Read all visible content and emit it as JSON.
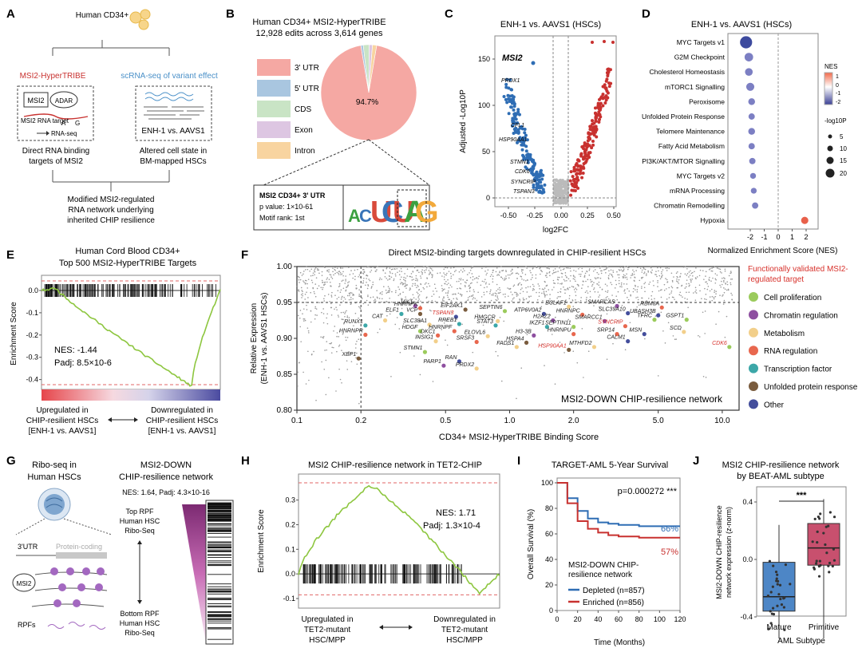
{
  "colors": {
    "utr3": "#F5A8A3",
    "utr5": "#A9C6E0",
    "cds": "#C9E4C5",
    "exon": "#DDC6E2",
    "intron": "#F8D4A0",
    "down_blue": "#2E6DB4",
    "up_red": "#C8312F",
    "green_line": "#8DC63F",
    "sig_dash": "#E06666",
    "cat_prolif": "#9BCB5C",
    "cat_chrom": "#8E4FA0",
    "cat_metab": "#F2CF8A",
    "cat_rna": "#E8674E",
    "cat_tf": "#3CA7A8",
    "cat_upr": "#7A5C3E",
    "cat_other": "#444E9C",
    "validated_red": "#D7312B",
    "j_mature": "#4D86C6",
    "j_primitive": "#C8506E"
  },
  "panelA": {
    "letter": "A",
    "cells_label": "Human CD34+",
    "left_title": "MSI2-HyperTRIBE",
    "right_title": "scRNA-seq of variant effect",
    "box_msi2": "MSI2",
    "box_adar": "ADAR",
    "rna_label": "MSI2 RNA target",
    "a_label": "A",
    "g_label": "G",
    "rnaseq_label": "RNA-seq",
    "enh_label": "ENH-1 vs. AAVS1",
    "left_caption": [
      "Direct RNA binding",
      "targets of MSI2"
    ],
    "right_caption": [
      "Altered cell state in",
      "BM-mapped HSCs"
    ],
    "bottom_caption": [
      "Modified MSI2-regulated",
      "RNA network underlying",
      "inherited CHIP resilience"
    ]
  },
  "panelB": {
    "letter": "B",
    "title": [
      "Human CD34+ MSI2-HyperTRIBE",
      "12,928 edits across 3,614 genes"
    ],
    "motif_box": [
      "MSI2 CD34+ 3' UTR",
      "p value: 1×10-61",
      "Motif rank: 1st"
    ],
    "motif_letters": [
      "A",
      "C",
      "U",
      "C",
      "U",
      "A",
      "G"
    ]
  },
  "panelC": {
    "letter": "C",
    "title": "ENH-1 vs. AAVS1 (HSCs)",
    "xlabel": "log2FC",
    "ylabel": "Adjusted -Log10P",
    "xticks": [
      "-0.50",
      "-0.25",
      "0.00",
      "0.25",
      "0.50"
    ],
    "yticks": [
      "0",
      "50",
      "100",
      "150"
    ],
    "labels": [
      "MSI2",
      "PRDX1",
      "CFL1",
      "HSP90AA1",
      "STMN1",
      "CDK6",
      "SYNCRIP",
      "TSPAN3"
    ]
  },
  "panelD": {
    "letter": "D",
    "title": "ENH-1 vs. AAVS1 (HSCs)",
    "xlabel": "Normalized Enrichment Score (NES)",
    "xticks": [
      "-2",
      "-1",
      "0",
      "1",
      "2"
    ],
    "nes_legend_title": "NES",
    "nes_ticks": [
      "1",
      "0",
      "-1",
      "-2"
    ],
    "size_legend_title": "-log10P",
    "size_ticks": [
      "5",
      "10",
      "15",
      "20"
    ]
  },
  "panelE": {
    "letter": "E",
    "title": [
      "Human Cord Blood CD34+",
      "Top 500 MSI2-HyperTRIBE Targets"
    ],
    "ylabel": "Enrichment Score",
    "yticks": [
      "0.0",
      "-0.1",
      "-0.2",
      "-0.3",
      "-0.4"
    ],
    "nes": "NES: -1.44",
    "padj": "Padj: 8.5×10-6",
    "left_caption": [
      "Upregulated in",
      "CHIP-resilient HSCs",
      "[ENH-1 vs. AAVS1]"
    ],
    "right_caption": [
      "Downregulated in",
      "CHIP-resilient HSCs",
      "[ENH-1 vs. AAVS1]"
    ]
  },
  "panelF": {
    "letter": "F",
    "title": "Direct MSI2-binding targets downregulated in CHIP-resilient HSCs",
    "xlabel": "CD34+ MSI2-HyperTRIBE Binding Score",
    "ylabel": [
      "Relative Expression",
      "(ENH-1 vs. AAVS1 HSCs)"
    ],
    "xticks": [
      "0.1",
      "0.2",
      "0.5",
      "1.0",
      "2.0",
      "5.0",
      "10.0"
    ],
    "yticks": [
      "0.80",
      "0.85",
      "0.90",
      "0.95",
      "1.00"
    ],
    "network_label": "MSI2-DOWN CHIP-resilience network",
    "legend_title": [
      "Functionally validated MSI2-",
      "regulated target"
    ],
    "legend": [
      "Cell proliferation",
      "Chromatin regulation",
      "Metabolism",
      "RNA regulation",
      "Transcription factor",
      "Unfolded protein response",
      "Other"
    ]
  },
  "panelG": {
    "letter": "G",
    "left_title": [
      "Ribo-seq in",
      "Human HSCs"
    ],
    "right_title": [
      "MSI2-DOWN",
      "CHIP-resilience network"
    ],
    "stats": "NES: 1.64, Padj: 4.3×10-16",
    "utr": "3'UTR",
    "coding": "Protein-coding",
    "msi2": "MSI2",
    "rpfs": "RPFs",
    "top": [
      "Top RPF",
      "Human HSC",
      "Ribo-Seq"
    ],
    "bottom": [
      "Bottom RPF",
      "Human HSC",
      "Ribo-Seq"
    ]
  },
  "panelH": {
    "letter": "H",
    "title": "MSI2 CHIP-resilience network in TET2-CHIP",
    "ylabel": "Enrichment Score",
    "yticks": [
      "0.3",
      "0.2",
      "0.1",
      "0.0",
      "-0.1"
    ],
    "nes": "NES: 1.71",
    "padj": "Padj: 1.3×10-4",
    "left_caption": [
      "Upregulated in",
      "TET2-mutant",
      "HSC/MPP"
    ],
    "right_caption": [
      "Downregulated in",
      "TET2-mutant",
      "HSC/MPP"
    ]
  },
  "panelI": {
    "letter": "I",
    "title": "TARGET-AML 5-Year Survival",
    "pvalue": "p=0.000272 ***",
    "xlabel": "Time (Months)",
    "ylabel": "Overall Survival (%)",
    "xticks": [
      "0",
      "20",
      "40",
      "60",
      "80",
      "100",
      "120"
    ],
    "yticks": [
      "100",
      "80",
      "60",
      "40",
      "20",
      "0"
    ],
    "pct_depleted": "66%",
    "pct_enriched": "57%",
    "legend_title": [
      "MSI2-DOWN CHIP-",
      "resilience network"
    ],
    "legend": [
      "Depleted (n=857)",
      "Enriched (n=856)"
    ]
  },
  "panelJ": {
    "letter": "J",
    "title": [
      "MSI2 CHIP-resilience network",
      "by BEAT-AML subtype"
    ],
    "ylabel": [
      "MSI2-DOWN CHIP-resilience",
      "network expression (z-norm)"
    ],
    "yticks": [
      "0.4",
      "0.0",
      "-0.4"
    ],
    "categories": [
      "Mature",
      "Primitive"
    ],
    "xlabel": "AML Subtype",
    "sig": "***"
  },
  "chart_data": [
    {
      "type": "pie",
      "title": "Human CD34+ MSI2-HyperTRIBE",
      "categories": [
        "3' UTR",
        "5' UTR",
        "CDS",
        "Exon",
        "Intron"
      ],
      "values": [
        94.7,
        0.8,
        2.0,
        1.1,
        1.4
      ],
      "center_label": "94.7%"
    },
    {
      "type": "scatter",
      "title": "Panel D ENH-1 vs. AAVS1 (HSCs)",
      "categories": [
        "MYC Targets v1",
        "G2M Checkpoint",
        "Cholesterol Homeostasis",
        "mTORC1 Signalling",
        "Peroxisome",
        "Unfolded Protein Response",
        "Telomere Maintenance",
        "Fatty Acid Metabolism",
        "PI3K/AKT/MTOR Signalling",
        "MYC Targets v2",
        "mRNA Processing",
        "Chromatin Remodelling",
        "Hypoxia"
      ],
      "nes": [
        -2.3,
        -2.1,
        -2.1,
        -2.0,
        -1.9,
        -1.9,
        -1.9,
        -1.9,
        -1.85,
        -1.8,
        -1.75,
        -1.65,
        1.9
      ],
      "neglog10p": [
        20,
        12,
        10,
        11,
        8,
        7,
        8,
        7,
        7,
        6,
        6,
        7,
        9
      ]
    },
    {
      "type": "scatter",
      "title": "Panel F Direct MSI2-binding targets",
      "xscale": "log",
      "xlim": [
        0.1,
        12
      ],
      "ylim": [
        0.8,
        1.0
      ],
      "points": [
        {
          "label": "JAK1",
          "x": 0.36,
          "y": 0.945,
          "cat": "cat_chrom",
          "v": false
        },
        {
          "label": "HNRNPK",
          "x": 0.38,
          "y": 0.942,
          "cat": "cat_rna",
          "v": false
        },
        {
          "label": "EIF2AK1",
          "x": 0.62,
          "y": 0.94,
          "cat": "cat_upr",
          "v": false
        },
        {
          "label": "SEPTIN6",
          "x": 0.95,
          "y": 0.938,
          "cat": "cat_prolif",
          "v": false
        },
        {
          "label": "BCLAF1",
          "x": 1.9,
          "y": 0.944,
          "cat": "cat_metab",
          "v": false
        },
        {
          "label": "SMARCA5",
          "x": 3.2,
          "y": 0.945,
          "cat": "cat_chrom",
          "v": false
        },
        {
          "label": "RBM8A",
          "x": 5.2,
          "y": 0.943,
          "cat": "cat_rna",
          "v": false
        },
        {
          "label": "ELF1",
          "x": 0.31,
          "y": 0.934,
          "cat": "cat_tf",
          "v": false
        },
        {
          "label": "VCP",
          "x": 0.38,
          "y": 0.934,
          "cat": "cat_upr",
          "v": false
        },
        {
          "label": "TSPAN3",
          "x": 0.56,
          "y": 0.93,
          "cat": "cat_other",
          "v": true
        },
        {
          "label": "ATP6V0A2",
          "x": 1.45,
          "y": 0.934,
          "cat": "cat_other",
          "v": false
        },
        {
          "label": "HNRNPC",
          "x": 2.2,
          "y": 0.933,
          "cat": "cat_rna",
          "v": false
        },
        {
          "label": "SLC39A10",
          "x": 3.6,
          "y": 0.935,
          "cat": "cat_other",
          "v": false
        },
        {
          "label": "UBASH3B",
          "x": 5.0,
          "y": 0.932,
          "cat": "cat_other",
          "v": false
        },
        {
          "label": "CAT",
          "x": 0.26,
          "y": 0.925,
          "cat": "cat_metab",
          "v": false
        },
        {
          "label": "HMGCR",
          "x": 0.88,
          "y": 0.924,
          "cat": "cat_metab",
          "v": false
        },
        {
          "label": "H2AZ2",
          "x": 1.6,
          "y": 0.925,
          "cat": "cat_chrom",
          "v": false
        },
        {
          "label": "SMARCC1",
          "x": 2.8,
          "y": 0.924,
          "cat": "cat_chrom",
          "v": false
        },
        {
          "label": "TFRC",
          "x": 4.8,
          "y": 0.926,
          "cat": "cat_prolif",
          "v": false
        },
        {
          "label": "GSPT1",
          "x": 6.8,
          "y": 0.926,
          "cat": "cat_prolif",
          "v": false
        },
        {
          "label": "RUNX1",
          "x": 0.21,
          "y": 0.918,
          "cat": "cat_tf",
          "v": false
        },
        {
          "label": "SLC38A1",
          "x": 0.42,
          "y": 0.919,
          "cat": "cat_metab",
          "v": false
        },
        {
          "label": "RREB1",
          "x": 0.58,
          "y": 0.92,
          "cat": "cat_tf",
          "v": false
        },
        {
          "label": "STAT3",
          "x": 0.86,
          "y": 0.918,
          "cat": "cat_tf",
          "v": false
        },
        {
          "label": "IKZF1",
          "x": 1.5,
          "y": 0.916,
          "cat": "cat_tf",
          "v": false
        },
        {
          "label": "SEPTIN11",
          "x": 2.0,
          "y": 0.916,
          "cat": "cat_prolif",
          "v": false
        },
        {
          "label": "SYNCRIP",
          "x": 3.5,
          "y": 0.917,
          "cat": "cat_rna",
          "v": true
        },
        {
          "label": "HDGF",
          "x": 0.38,
          "y": 0.91,
          "cat": "cat_prolif",
          "v": false
        },
        {
          "label": "HNRNPF",
          "x": 0.55,
          "y": 0.91,
          "cat": "cat_rna",
          "v": false
        },
        {
          "label": "SCD",
          "x": 6.6,
          "y": 0.909,
          "cat": "cat_metab",
          "v": false
        },
        {
          "label": "CDK6",
          "x": 10.8,
          "y": 0.888,
          "cat": "cat_prolif",
          "v": true
        },
        {
          "label": "HNRNPR",
          "x": 0.21,
          "y": 0.905,
          "cat": "cat_rna",
          "v": false
        },
        {
          "label": "DKC1",
          "x": 0.46,
          "y": 0.904,
          "cat": "cat_rna",
          "v": false
        },
        {
          "label": "ELOVL6",
          "x": 0.79,
          "y": 0.903,
          "cat": "cat_metab",
          "v": false
        },
        {
          "label": "H3-3B",
          "x": 1.3,
          "y": 0.904,
          "cat": "cat_chrom",
          "v": false
        },
        {
          "label": "HNRNPU",
          "x": 2.0,
          "y": 0.906,
          "cat": "cat_rna",
          "v": false
        },
        {
          "label": "SRP14",
          "x": 3.2,
          "y": 0.906,
          "cat": "cat_rna",
          "v": false
        },
        {
          "label": "MSN",
          "x": 4.3,
          "y": 0.906,
          "cat": "cat_other",
          "v": false
        },
        {
          "label": "INSIG1",
          "x": 0.45,
          "y": 0.896,
          "cat": "cat_metab",
          "v": false
        },
        {
          "label": "SRSF3",
          "x": 0.7,
          "y": 0.895,
          "cat": "cat_rna",
          "v": false
        },
        {
          "label": "HSPA4",
          "x": 1.2,
          "y": 0.894,
          "cat": "cat_upr",
          "v": false
        },
        {
          "label": "FADS1",
          "x": 1.08,
          "y": 0.888,
          "cat": "cat_metab",
          "v": false
        },
        {
          "label": "CALM1",
          "x": 3.6,
          "y": 0.896,
          "cat": "cat_other",
          "v": false
        },
        {
          "label": "MTHFD2",
          "x": 2.5,
          "y": 0.888,
          "cat": "cat_metab",
          "v": false
        },
        {
          "label": "HSP90AA1",
          "x": 1.9,
          "y": 0.884,
          "cat": "cat_upr",
          "v": true
        },
        {
          "label": "STMN1",
          "x": 0.4,
          "y": 0.881,
          "cat": "cat_prolif",
          "v": false
        },
        {
          "label": "XBP1",
          "x": 0.195,
          "y": 0.872,
          "cat": "cat_upr",
          "v": false
        },
        {
          "label": "RAN",
          "x": 0.58,
          "y": 0.868,
          "cat": "cat_other",
          "v": false
        },
        {
          "label": "PARP1",
          "x": 0.49,
          "y": 0.862,
          "cat": "cat_chrom",
          "v": false
        },
        {
          "label": "PRDX2",
          "x": 0.7,
          "y": 0.858,
          "cat": "cat_metab",
          "v": false
        }
      ]
    },
    {
      "type": "line",
      "title": "TARGET-AML 5-Year Survival",
      "x": [
        0,
        10,
        20,
        30,
        40,
        50,
        60,
        80,
        100,
        120
      ],
      "series": [
        {
          "name": "Depleted (n=857)",
          "values": [
            100,
            88,
            78,
            72,
            69,
            68,
            67,
            66,
            66,
            66
          ]
        },
        {
          "name": "Enriched (n=856)",
          "values": [
            100,
            84,
            70,
            64,
            61,
            59,
            58,
            57,
            57,
            57
          ]
        }
      ],
      "xlim": [
        0,
        120
      ],
      "ylim": [
        0,
        100
      ]
    },
    {
      "type": "bar",
      "title": "MSI2 CHIP-resilience network by BEAT-AML subtype",
      "categories": [
        "Mature",
        "Primitive"
      ],
      "medians": [
        -0.26,
        0.08
      ],
      "q1": [
        -0.36,
        -0.04
      ],
      "q3": [
        -0.02,
        0.25
      ],
      "whisker_low": [
        -0.55,
        -0.55
      ],
      "whisker_high": [
        0.24,
        0.42
      ]
    }
  ]
}
